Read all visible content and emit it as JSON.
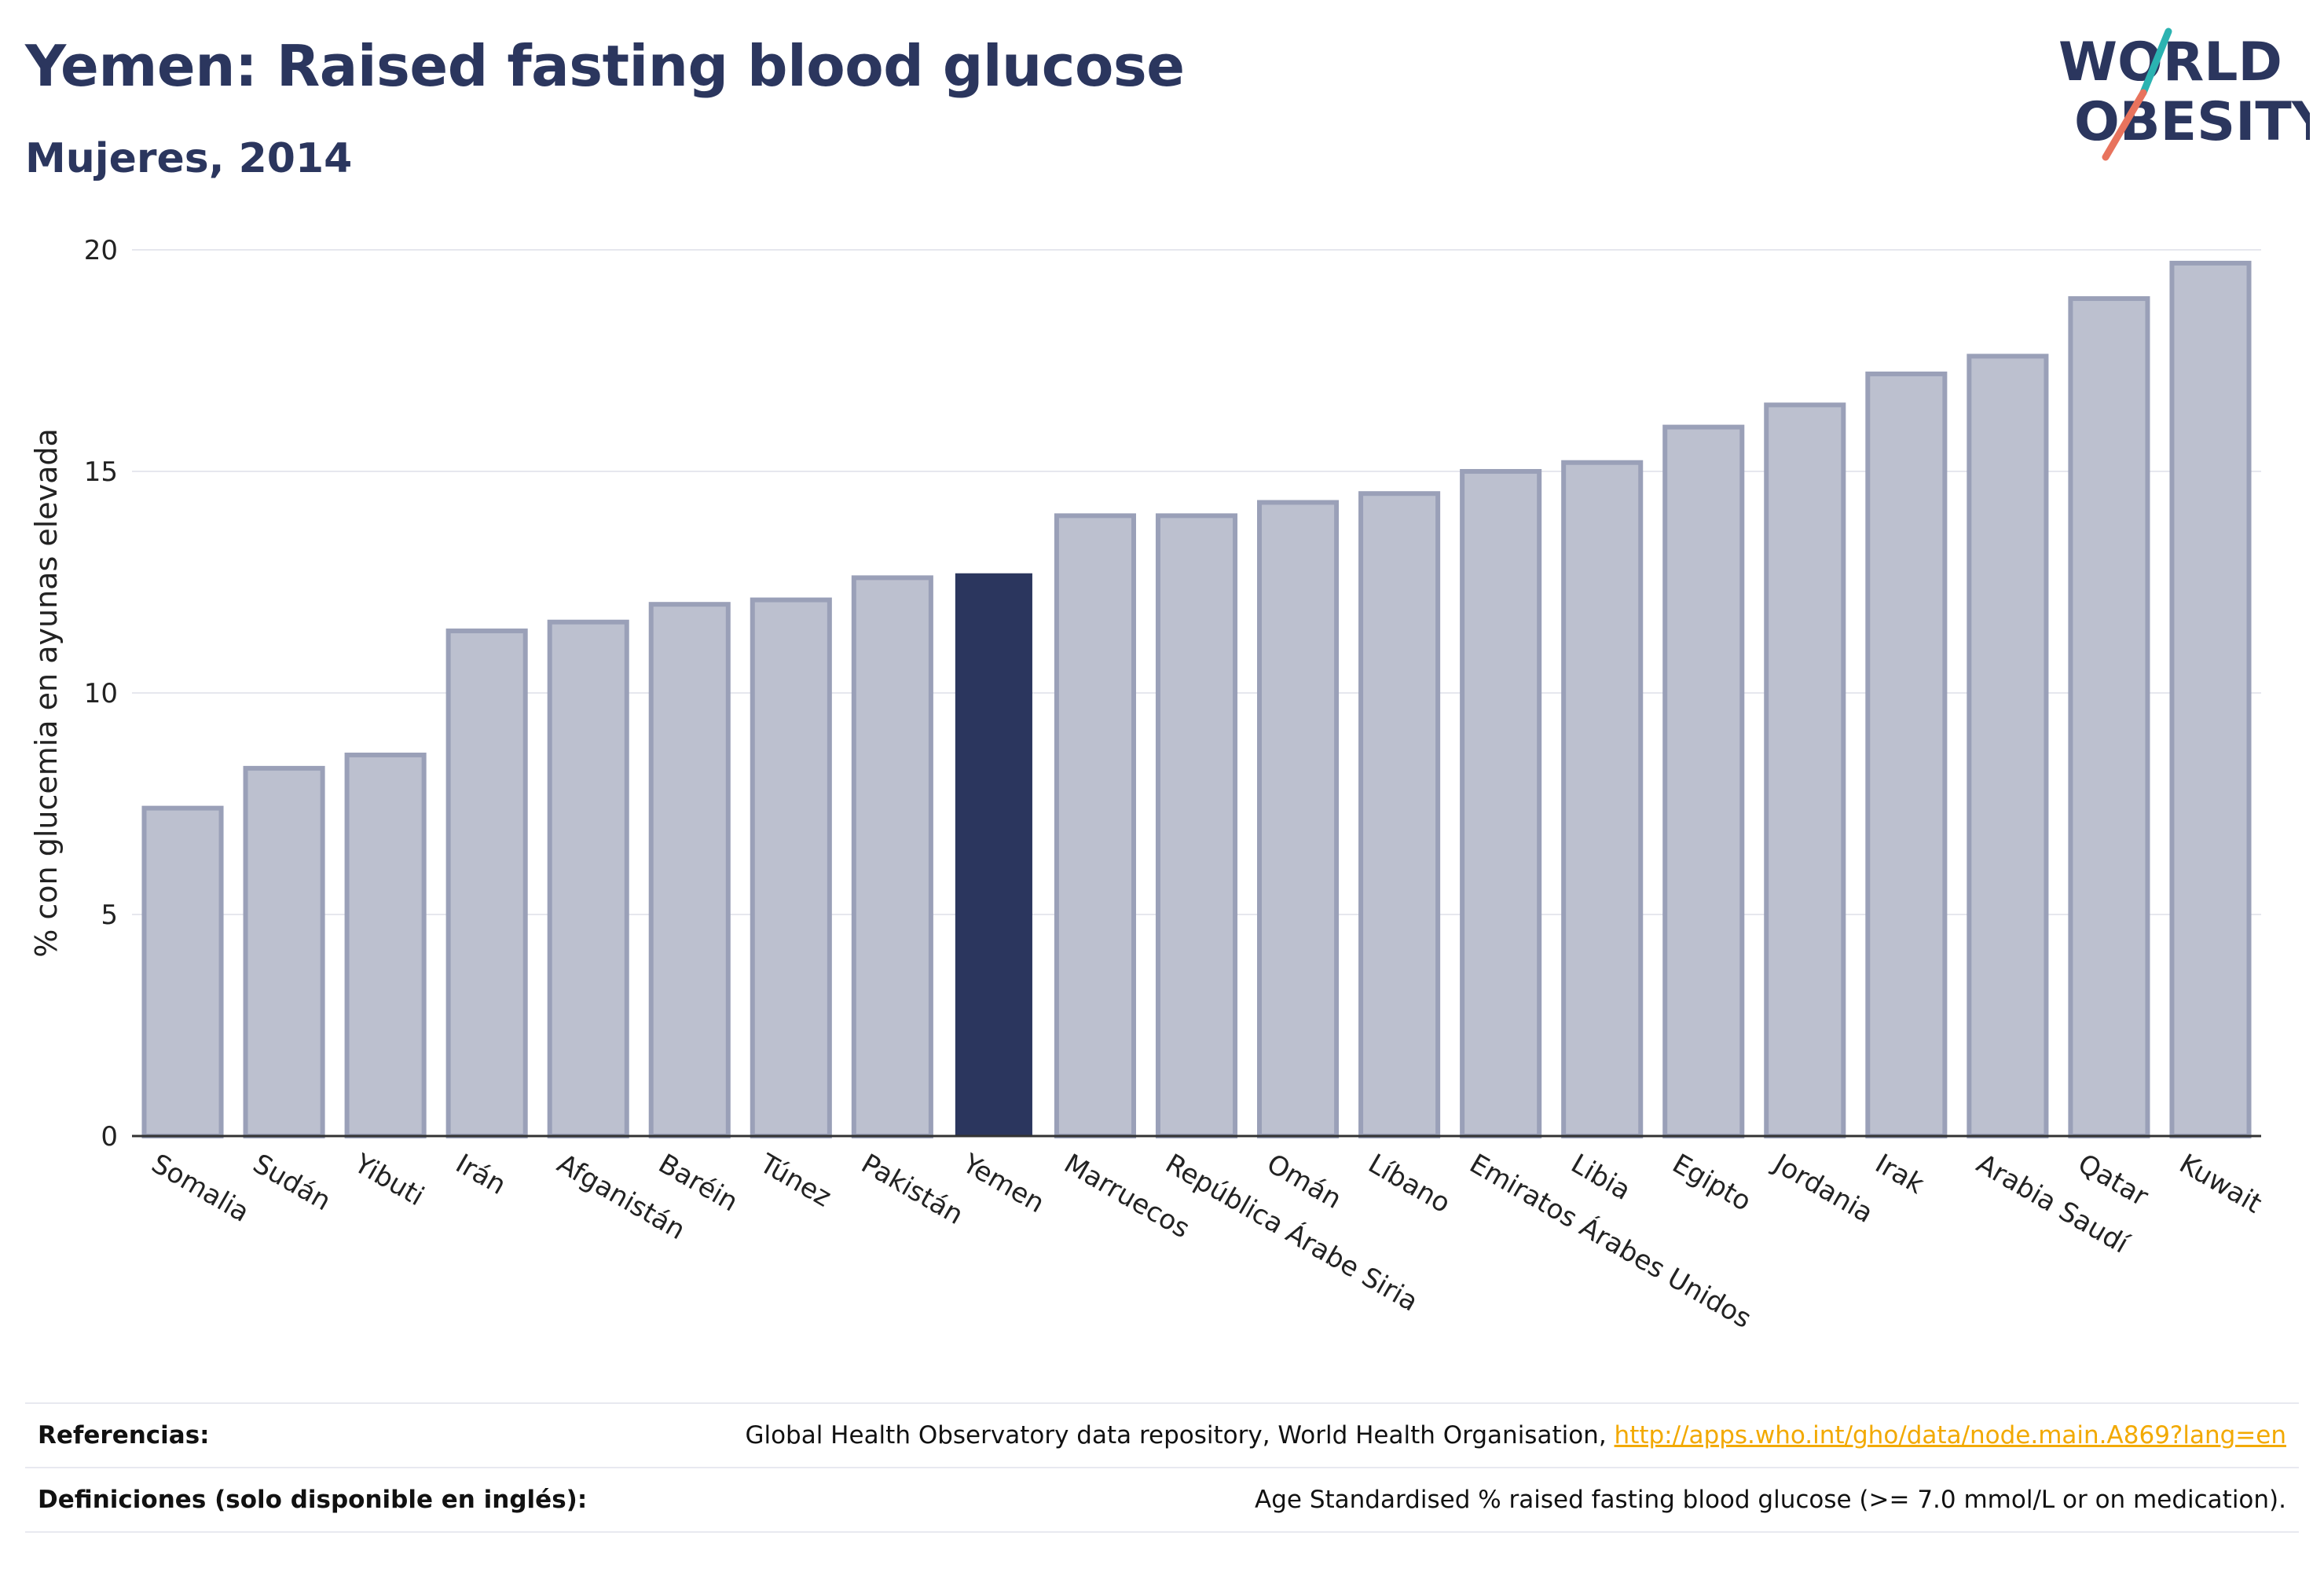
{
  "header": {
    "title": "Yemen: Raised fasting blood glucose",
    "subtitle": "Mujeres, 2014"
  },
  "logo": {
    "line1": "WORLD",
    "line2": "OBESITY",
    "accent_teal": "#2bb3b1",
    "accent_coral": "#e8735d"
  },
  "colors": {
    "bar_default": "#bcc0cf",
    "bar_default_border": "#9aa0b8",
    "bar_highlight": "#2b365e",
    "text": "#2b365e",
    "link": "#f2a900"
  },
  "chart_data": {
    "type": "bar",
    "ylabel": "% con glucemia en ayunas elevada",
    "ylim": [
      0,
      20
    ],
    "yticks": [
      0,
      5,
      10,
      15,
      20
    ],
    "grid": true,
    "highlight": "Yemen",
    "categories": [
      "Somalia",
      "Sudán",
      "Yibuti",
      "Irán",
      "Afganistán",
      "Baréin",
      "Túnez",
      "Pakistán",
      "Yemen",
      "Marruecos",
      "República Árabe Siria",
      "Omán",
      "Líbano",
      "Emiratos Árabes Unidos",
      "Libia",
      "Egipto",
      "Jordania",
      "Irak",
      "Arabia Saudí",
      "Qatar",
      "Kuwait"
    ],
    "values": [
      7.4,
      8.3,
      8.6,
      11.4,
      11.6,
      12.0,
      12.1,
      12.6,
      12.7,
      14.0,
      14.0,
      14.3,
      14.5,
      15.0,
      15.2,
      16.0,
      16.5,
      17.2,
      17.6,
      18.9,
      19.7
    ]
  },
  "footer": {
    "references_label": "Referencias:",
    "references_text": "Global Health Observatory data repository, World Health Organisation, ",
    "references_link": "http://apps.who.int/gho/data/node.main.A869?lang=en",
    "definitions_label": "Definiciones (solo disponible en inglés):",
    "definitions_text": "Age Standardised % raised fasting blood glucose (>= 7.0 mmol/L or on medication)."
  }
}
